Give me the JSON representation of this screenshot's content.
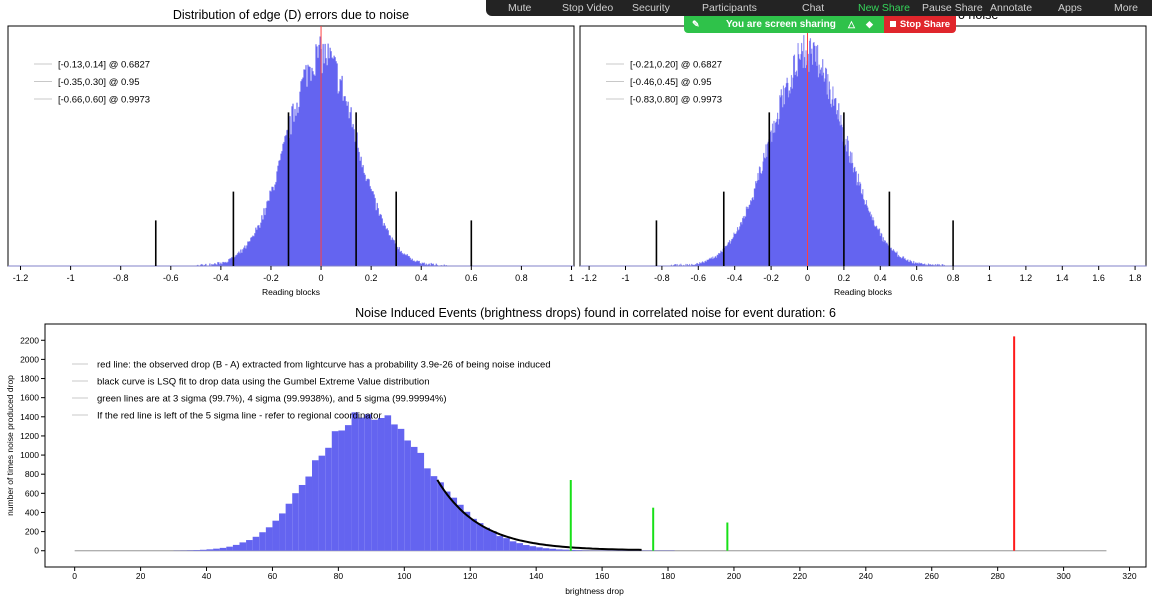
{
  "zoom_toolbar": {
    "items": [
      "Mute",
      "Stop Video",
      "Security",
      "Participants",
      "Chat",
      "New Share",
      "Pause Share",
      "Annotate",
      "Apps",
      "More"
    ],
    "active_index": 5,
    "active_color": "#35d45a",
    "banner_text": "You are screen sharing",
    "stop_label": "Stop Share",
    "partial_title_text": "o noise"
  },
  "chart_data": [
    {
      "type": "bar",
      "title": "Distribution of edge (D) errors due to noise",
      "xlabel": "Reading blocks",
      "ylabel": "",
      "xlim": [
        -1.25,
        1.01
      ],
      "xticks": [
        -1.2,
        -1,
        -0.8,
        -0.6,
        -0.4,
        -0.2,
        0,
        0.2,
        0.4,
        0.6,
        0.8,
        1
      ],
      "xtick_labels": [
        "-1.2",
        "-1",
        "-0.8",
        "-0.6",
        "-0.4",
        "-0.2",
        "0",
        "0.2",
        "0.4",
        "0.6",
        "0.8",
        "1"
      ],
      "histogram": {
        "center": 0,
        "sigma": 0.138,
        "peak_fraction": 0.98,
        "color": "#6464f0"
      },
      "legend": [
        "[-0.13,0.14] @ 0.6827",
        "[-0.35,0.30] @ 0.95",
        "[-0.66,0.60] @ 0.9973"
      ],
      "vlines": [
        {
          "x": -0.13,
          "height_fraction": 0.64
        },
        {
          "x": 0.14,
          "height_fraction": 0.64
        },
        {
          "x": -0.35,
          "height_fraction": 0.31
        },
        {
          "x": 0.3,
          "height_fraction": 0.31
        },
        {
          "x": -0.66,
          "height_fraction": 0.19
        },
        {
          "x": 0.6,
          "height_fraction": 0.19
        }
      ],
      "red_line_x": 0,
      "colors": {
        "bar": "#6464f0",
        "line": "#000000",
        "marker": "#ff4040"
      }
    },
    {
      "type": "bar",
      "title": "",
      "xlabel": "Reading blocks",
      "ylabel": "",
      "xlim": [
        -1.25,
        1.86
      ],
      "xticks": [
        -1.2,
        -1,
        -0.8,
        -0.6,
        -0.4,
        -0.2,
        0,
        0.2,
        0.4,
        0.6,
        0.8,
        1,
        1.2,
        1.4,
        1.6,
        1.8
      ],
      "xtick_labels": [
        "-1.2",
        "-1",
        "-0.8",
        "-0.6",
        "-0.4",
        "-0.2",
        "0",
        "0.2",
        "0.4",
        "0.6",
        "0.8",
        "1",
        "1.2",
        "1.4",
        "1.6",
        "1.8"
      ],
      "histogram": {
        "center": 0,
        "sigma": 0.205,
        "peak_fraction": 0.98,
        "color": "#6464f0"
      },
      "legend": [
        "[-0.21,0.20] @ 0.6827",
        "[-0.46,0.45] @ 0.95",
        "[-0.83,0.80] @ 0.9973"
      ],
      "vlines": [
        {
          "x": -0.21,
          "height_fraction": 0.64
        },
        {
          "x": 0.2,
          "height_fraction": 0.64
        },
        {
          "x": -0.46,
          "height_fraction": 0.31
        },
        {
          "x": 0.45,
          "height_fraction": 0.31
        },
        {
          "x": -0.83,
          "height_fraction": 0.19
        },
        {
          "x": 0.8,
          "height_fraction": 0.19
        }
      ],
      "red_line_x": 0,
      "colors": {
        "bar": "#6464f0",
        "line": "#000000",
        "marker": "#ff4040"
      }
    },
    {
      "type": "bar",
      "title": "Noise Induced Events (brightness drops) found in correlated noise for event duration: 6",
      "xlabel": "brightness drop",
      "ylabel": "number of times noise produced drop",
      "xlim": [
        -9,
        325
      ],
      "ylim": [
        -170,
        2370
      ],
      "xticks": [
        0,
        20,
        40,
        60,
        80,
        100,
        120,
        140,
        160,
        180,
        200,
        220,
        240,
        260,
        280,
        300,
        320
      ],
      "yticks": [
        0,
        200,
        400,
        600,
        800,
        1000,
        1200,
        1400,
        1600,
        1800,
        2000,
        2200
      ],
      "histogram": {
        "bin_width": 2,
        "range": [
          30,
          182
        ],
        "peak": [
          88,
          1440
        ],
        "sigma_left": 15.5,
        "sigma_right": 19.5
      },
      "fit_curve": {
        "x_range": [
          110,
          172
        ],
        "y_start": 740,
        "y_end": 3
      },
      "green_lines": [
        {
          "x": 150.5,
          "y": 740
        },
        {
          "x": 175.5,
          "y": 450
        },
        {
          "x": 198,
          "y": 295
        }
      ],
      "red_line": {
        "x": 285,
        "y": 2240
      },
      "baseline": [
        0,
        313
      ],
      "legend": [
        "red line: the observed drop (B - A) extracted from lightcurve has a probability 3.9e-26 of being noise induced",
        "black curve is LSQ fit to drop data using the Gumbel Extreme Value distribution",
        "green lines are at 3 sigma (99.7%), 4 sigma (99.9938%), and 5 sigma (99.99994%)",
        "If the red line is left of the 5 sigma line - refer to regional coordinator"
      ],
      "colors": {
        "bar": "#6464f0",
        "fit": "#000000",
        "green": "#18e018",
        "red": "#ff1a1a",
        "baseline": "#b0b0b0"
      }
    }
  ]
}
